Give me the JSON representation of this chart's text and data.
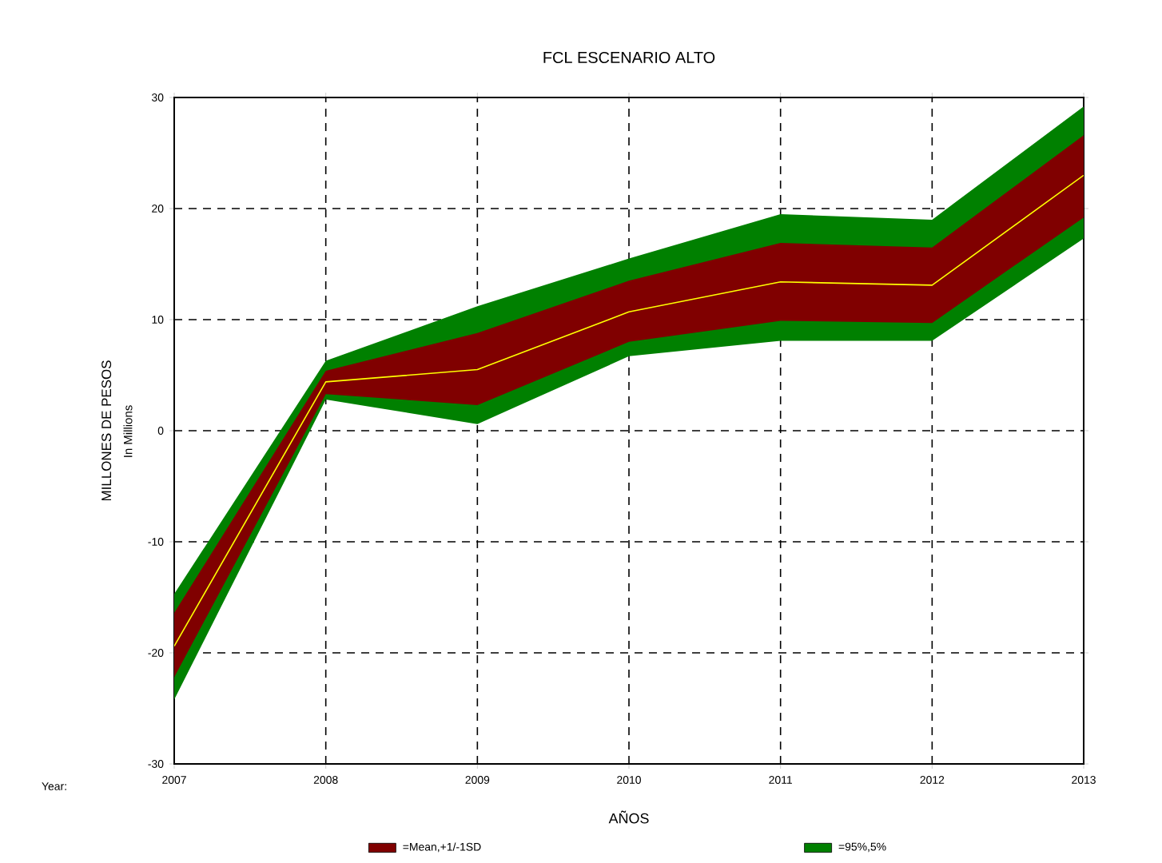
{
  "chart_data": {
    "type": "line",
    "title": "FCL ESCENARIO ALTO",
    "xlabel": "AÑOS",
    "ylabel": "MILLONES DE PESOS",
    "annotations": [
      "In Millions",
      "Year:"
    ],
    "x": [
      2007,
      2008,
      2009,
      2010,
      2011,
      2012,
      2013
    ],
    "xlim": [
      2007,
      2013
    ],
    "xticks": [
      2007,
      2008,
      2009,
      2010,
      2011,
      2012,
      2013
    ],
    "ylim": [
      -30,
      30
    ],
    "yticks": [
      -30,
      -20,
      -10,
      0,
      10,
      20,
      30
    ],
    "grid": true,
    "legend": "bottom",
    "line_style": "solid",
    "marker": "none",
    "series": [
      {
        "type": "line",
        "color": "#ffff00",
        "values": [
          -19.4,
          4.4,
          5.5,
          10.7,
          13.4,
          13.1,
          23.0
        ]
      },
      {
        "type": "area",
        "name": "=Mean,+1/-1SD",
        "color": "#800000",
        "values": [
          null,
          null,
          null,
          null,
          null,
          null,
          null
        ],
        "lower": [
          -22.2,
          3.3,
          2.3,
          8.0,
          9.9,
          9.7,
          19.2
        ],
        "upper": [
          -16.4,
          5.4,
          8.8,
          13.5,
          16.9,
          16.5,
          26.6
        ]
      },
      {
        "type": "area",
        "name": "=95%,5%",
        "color": "#008000",
        "values": [
          null,
          null,
          null,
          null,
          null,
          null,
          null
        ],
        "lower": [
          -24.2,
          2.8,
          0.6,
          6.7,
          8.1,
          8.1,
          17.3
        ],
        "upper": [
          -14.7,
          6.3,
          11.2,
          15.5,
          19.5,
          19.0,
          29.2
        ]
      }
    ]
  }
}
